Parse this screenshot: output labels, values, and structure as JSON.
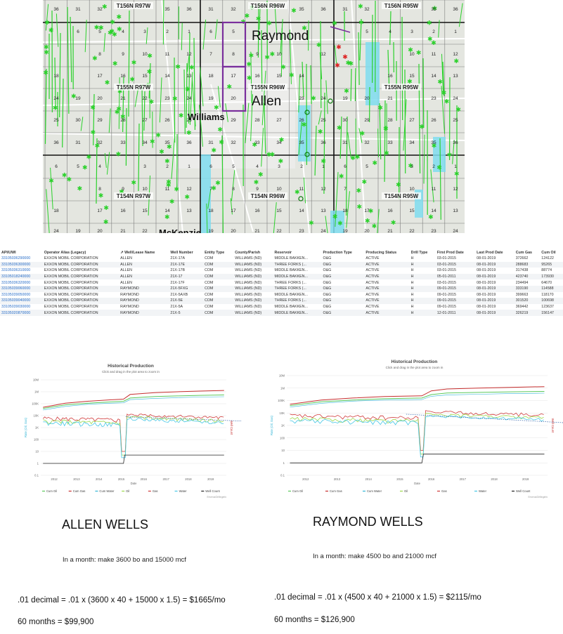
{
  "map": {
    "township_labels": [
      {
        "text": "T156N R97W",
        "x": 190,
        "y": 11
      },
      {
        "text": "T156N R96W",
        "x": 381,
        "y": 11
      },
      {
        "text": "T156N R95W",
        "x": 571,
        "y": 11
      },
      {
        "text": "T155N R97W",
        "x": 190,
        "y": 127
      },
      {
        "text": "T155N R96W",
        "x": 381,
        "y": 127
      },
      {
        "text": "T155N R95W",
        "x": 571,
        "y": 127
      },
      {
        "text": "T154N R97W",
        "x": 190,
        "y": 282
      },
      {
        "text": "T154N R96W",
        "x": 381,
        "y": 282
      },
      {
        "text": "T154N R95W",
        "x": 571,
        "y": 282
      }
    ],
    "place_labels": [
      {
        "text": "Raymond",
        "x": 358,
        "y": 57,
        "size": 19
      },
      {
        "text": "Allen",
        "x": 358,
        "y": 150,
        "size": 19
      },
      {
        "text": "Williams",
        "x": 267,
        "y": 171,
        "size": 13
      },
      {
        "text": "McKenzie",
        "x": 226,
        "y": 336,
        "size": 13
      }
    ],
    "section_numbers": [
      {
        "t": "36",
        "x": 80,
        "y": 15
      },
      {
        "t": "31",
        "x": 111,
        "y": 15
      },
      {
        "t": "32",
        "x": 142,
        "y": 15
      },
      {
        "t": "35",
        "x": 238,
        "y": 15
      },
      {
        "t": "36",
        "x": 269,
        "y": 15
      },
      {
        "t": "31",
        "x": 300,
        "y": 15
      },
      {
        "t": "32",
        "x": 332,
        "y": 15
      },
      {
        "t": "35",
        "x": 429,
        "y": 15
      },
      {
        "t": "36",
        "x": 460,
        "y": 15
      },
      {
        "t": "31",
        "x": 491,
        "y": 15
      },
      {
        "t": "32",
        "x": 522,
        "y": 15
      },
      {
        "t": "35",
        "x": 617,
        "y": 15
      },
      {
        "t": "36",
        "x": 648,
        "y": 15
      },
      {
        "t": "6",
        "x": 111,
        "y": 47
      },
      {
        "t": "5",
        "x": 142,
        "y": 47
      },
      {
        "t": "4",
        "x": 175,
        "y": 47
      },
      {
        "t": "3",
        "x": 206,
        "y": 47
      },
      {
        "t": "2",
        "x": 238,
        "y": 47
      },
      {
        "t": "1",
        "x": 269,
        "y": 47
      },
      {
        "t": "6",
        "x": 300,
        "y": 47
      },
      {
        "t": "5",
        "x": 332,
        "y": 47
      },
      {
        "t": "5",
        "x": 522,
        "y": 47
      },
      {
        "t": "4",
        "x": 555,
        "y": 47
      },
      {
        "t": "3",
        "x": 586,
        "y": 47
      },
      {
        "t": "2",
        "x": 617,
        "y": 47
      },
      {
        "t": "1",
        "x": 648,
        "y": 47
      },
      {
        "t": "8",
        "x": 142,
        "y": 79
      },
      {
        "t": "9",
        "x": 175,
        "y": 79
      },
      {
        "t": "10",
        "x": 206,
        "y": 79
      },
      {
        "t": "11",
        "x": 238,
        "y": 79
      },
      {
        "t": "12",
        "x": 269,
        "y": 79
      },
      {
        "t": "7",
        "x": 300,
        "y": 79
      },
      {
        "t": "8",
        "x": 332,
        "y": 79
      },
      {
        "t": "9",
        "x": 366,
        "y": 79
      },
      {
        "t": "10",
        "x": 397,
        "y": 79
      },
      {
        "t": "12",
        "x": 460,
        "y": 79
      },
      {
        "t": "10",
        "x": 586,
        "y": 79
      },
      {
        "t": "11",
        "x": 617,
        "y": 79
      },
      {
        "t": "12",
        "x": 648,
        "y": 79
      },
      {
        "t": "18",
        "x": 80,
        "y": 110
      },
      {
        "t": "17",
        "x": 142,
        "y": 110
      },
      {
        "t": "16",
        "x": 175,
        "y": 110
      },
      {
        "t": "15",
        "x": 206,
        "y": 110
      },
      {
        "t": "14",
        "x": 238,
        "y": 110
      },
      {
        "t": "13",
        "x": 269,
        "y": 110
      },
      {
        "t": "18",
        "x": 300,
        "y": 110
      },
      {
        "t": "17",
        "x": 332,
        "y": 110
      },
      {
        "t": "16",
        "x": 366,
        "y": 110
      },
      {
        "t": "15",
        "x": 397,
        "y": 110
      },
      {
        "t": "14",
        "x": 429,
        "y": 110
      },
      {
        "t": "16",
        "x": 555,
        "y": 110
      },
      {
        "t": "15",
        "x": 586,
        "y": 110
      },
      {
        "t": "14",
        "x": 617,
        "y": 110
      },
      {
        "t": "13",
        "x": 648,
        "y": 110
      },
      {
        "t": "24",
        "x": 80,
        "y": 142
      },
      {
        "t": "19",
        "x": 111,
        "y": 142
      },
      {
        "t": "20",
        "x": 142,
        "y": 142
      },
      {
        "t": "21",
        "x": 175,
        "y": 142
      },
      {
        "t": "22",
        "x": 206,
        "y": 142
      },
      {
        "t": "23",
        "x": 238,
        "y": 142
      },
      {
        "t": "24",
        "x": 269,
        "y": 142
      },
      {
        "t": "19",
        "x": 300,
        "y": 142
      },
      {
        "t": "20",
        "x": 332,
        "y": 142
      },
      {
        "t": "23",
        "x": 429,
        "y": 142
      },
      {
        "t": "24",
        "x": 460,
        "y": 142
      },
      {
        "t": "19",
        "x": 491,
        "y": 142
      },
      {
        "t": "20",
        "x": 522,
        "y": 142
      },
      {
        "t": "21",
        "x": 555,
        "y": 142
      },
      {
        "t": "23",
        "x": 617,
        "y": 142
      },
      {
        "t": "24",
        "x": 648,
        "y": 142
      },
      {
        "t": "25",
        "x": 80,
        "y": 173
      },
      {
        "t": "30",
        "x": 111,
        "y": 173
      },
      {
        "t": "29",
        "x": 142,
        "y": 173
      },
      {
        "t": "28",
        "x": 175,
        "y": 173
      },
      {
        "t": "27",
        "x": 206,
        "y": 173
      },
      {
        "t": "26",
        "x": 238,
        "y": 173
      },
      {
        "t": "25",
        "x": 269,
        "y": 173
      },
      {
        "t": "29",
        "x": 332,
        "y": 173
      },
      {
        "t": "28",
        "x": 366,
        "y": 173
      },
      {
        "t": "27",
        "x": 397,
        "y": 173
      },
      {
        "t": "26",
        "x": 429,
        "y": 173
      },
      {
        "t": "25",
        "x": 460,
        "y": 173
      },
      {
        "t": "30",
        "x": 491,
        "y": 173
      },
      {
        "t": "29",
        "x": 522,
        "y": 173
      },
      {
        "t": "28",
        "x": 555,
        "y": 173
      },
      {
        "t": "27",
        "x": 586,
        "y": 173
      },
      {
        "t": "26",
        "x": 617,
        "y": 173
      },
      {
        "t": "25",
        "x": 648,
        "y": 173
      },
      {
        "t": "36",
        "x": 80,
        "y": 205
      },
      {
        "t": "31",
        "x": 111,
        "y": 205
      },
      {
        "t": "32",
        "x": 142,
        "y": 205
      },
      {
        "t": "33",
        "x": 175,
        "y": 205
      },
      {
        "t": "34",
        "x": 206,
        "y": 205
      },
      {
        "t": "35",
        "x": 238,
        "y": 205
      },
      {
        "t": "36",
        "x": 269,
        "y": 205
      },
      {
        "t": "31",
        "x": 300,
        "y": 205
      },
      {
        "t": "32",
        "x": 332,
        "y": 205
      },
      {
        "t": "33",
        "x": 366,
        "y": 205
      },
      {
        "t": "34",
        "x": 397,
        "y": 205
      },
      {
        "t": "35",
        "x": 429,
        "y": 205
      },
      {
        "t": "36",
        "x": 460,
        "y": 205
      },
      {
        "t": "31",
        "x": 491,
        "y": 205
      },
      {
        "t": "32",
        "x": 522,
        "y": 205
      },
      {
        "t": "33",
        "x": 555,
        "y": 205
      },
      {
        "t": "34",
        "x": 586,
        "y": 205
      },
      {
        "t": "35",
        "x": 617,
        "y": 205
      },
      {
        "t": "36",
        "x": 648,
        "y": 205
      },
      {
        "t": "6",
        "x": 80,
        "y": 239
      },
      {
        "t": "5",
        "x": 111,
        "y": 239
      },
      {
        "t": "4",
        "x": 142,
        "y": 239
      },
      {
        "t": "3",
        "x": 206,
        "y": 239
      },
      {
        "t": "2",
        "x": 238,
        "y": 239
      },
      {
        "t": "1",
        "x": 269,
        "y": 239
      },
      {
        "t": "6",
        "x": 300,
        "y": 239
      },
      {
        "t": "5",
        "x": 332,
        "y": 239
      },
      {
        "t": "4",
        "x": 366,
        "y": 239
      },
      {
        "t": "3",
        "x": 397,
        "y": 239
      },
      {
        "t": "2",
        "x": 429,
        "y": 239
      },
      {
        "t": "1",
        "x": 460,
        "y": 239
      },
      {
        "t": "6",
        "x": 491,
        "y": 239
      },
      {
        "t": "5",
        "x": 522,
        "y": 239
      },
      {
        "t": "3",
        "x": 586,
        "y": 239
      },
      {
        "t": "2",
        "x": 617,
        "y": 239
      },
      {
        "t": "1",
        "x": 648,
        "y": 239
      },
      {
        "t": "8",
        "x": 142,
        "y": 271
      },
      {
        "t": "9",
        "x": 175,
        "y": 271
      },
      {
        "t": "10",
        "x": 206,
        "y": 271
      },
      {
        "t": "11",
        "x": 238,
        "y": 271
      },
      {
        "t": "12",
        "x": 269,
        "y": 271
      },
      {
        "t": "7",
        "x": 300,
        "y": 271
      },
      {
        "t": "8",
        "x": 332,
        "y": 271
      },
      {
        "t": "9",
        "x": 366,
        "y": 271
      },
      {
        "t": "10",
        "x": 397,
        "y": 271
      },
      {
        "t": "11",
        "x": 429,
        "y": 271
      },
      {
        "t": "12",
        "x": 460,
        "y": 271
      },
      {
        "t": "7",
        "x": 491,
        "y": 271
      },
      {
        "t": "10",
        "x": 586,
        "y": 271
      },
      {
        "t": "11",
        "x": 617,
        "y": 271
      },
      {
        "t": "12",
        "x": 648,
        "y": 271
      },
      {
        "t": "18",
        "x": 80,
        "y": 302
      },
      {
        "t": "17",
        "x": 142,
        "y": 302
      },
      {
        "t": "16",
        "x": 175,
        "y": 302
      },
      {
        "t": "15",
        "x": 206,
        "y": 302
      },
      {
        "t": "14",
        "x": 238,
        "y": 302
      },
      {
        "t": "13",
        "x": 269,
        "y": 302
      },
      {
        "t": "18",
        "x": 300,
        "y": 302
      },
      {
        "t": "17",
        "x": 332,
        "y": 302
      },
      {
        "t": "16",
        "x": 366,
        "y": 302
      },
      {
        "t": "15",
        "x": 397,
        "y": 302
      },
      {
        "t": "14",
        "x": 429,
        "y": 302
      },
      {
        "t": "13",
        "x": 460,
        "y": 302
      },
      {
        "t": "18",
        "x": 491,
        "y": 302
      },
      {
        "t": "17",
        "x": 522,
        "y": 302
      },
      {
        "t": "16",
        "x": 555,
        "y": 302
      },
      {
        "t": "15",
        "x": 586,
        "y": 302
      },
      {
        "t": "14",
        "x": 617,
        "y": 302
      },
      {
        "t": "13",
        "x": 648,
        "y": 302
      },
      {
        "t": "24",
        "x": 80,
        "y": 331
      },
      {
        "t": "19",
        "x": 111,
        "y": 331
      },
      {
        "t": "20",
        "x": 142,
        "y": 331
      },
      {
        "t": "21",
        "x": 175,
        "y": 331
      },
      {
        "t": "22",
        "x": 206,
        "y": 331
      },
      {
        "t": "19",
        "x": 300,
        "y": 331
      },
      {
        "t": "20",
        "x": 332,
        "y": 331
      },
      {
        "t": "21",
        "x": 366,
        "y": 331
      },
      {
        "t": "22",
        "x": 397,
        "y": 331
      },
      {
        "t": "23",
        "x": 429,
        "y": 331
      },
      {
        "t": "24",
        "x": 460,
        "y": 331
      },
      {
        "t": "19",
        "x": 491,
        "y": 331
      },
      {
        "t": "20",
        "x": 522,
        "y": 331
      },
      {
        "t": "21",
        "x": 555,
        "y": 331
      },
      {
        "t": "22",
        "x": 586,
        "y": 331
      },
      {
        "t": "23",
        "x": 617,
        "y": 331
      },
      {
        "t": "24",
        "x": 648,
        "y": 331
      }
    ]
  },
  "table": {
    "columns": [
      "API/UWI",
      "Operator Alias (Legacy)",
      "↗ Well/Lease Name",
      "Well Number",
      "Entity Type",
      "County/Parish",
      "Reservoir",
      "Production Type",
      "Producing Status",
      "Drill Type",
      "First Prod Date",
      "Last Prod Date",
      "Cum Gas",
      "Cum Oil"
    ],
    "rows": [
      [
        "33105036290000",
        "EXXON MOBIL CORPORATION",
        "ALLEN",
        "21X-17A",
        "COM",
        "WILLIAMS (ND)",
        "MIDDLE BAKKEN...",
        "O&G",
        "ACTIVE",
        "H",
        "03-01-2015",
        "08-01-2019",
        "372662",
        "124122"
      ],
      [
        "33105036300000",
        "EXXON MOBIL CORPORATION",
        "ALLEN",
        "21X-17E",
        "COM",
        "WILLIAMS (ND)",
        "THREE FORKS (...",
        "O&G",
        "ACTIVE",
        "H",
        "03-01-2015",
        "08-01-2019",
        "288683",
        "95265"
      ],
      [
        "33105036310000",
        "EXXON MOBIL CORPORATION",
        "ALLEN",
        "21X-17B",
        "COM",
        "WILLIAMS (ND)",
        "MIDDLE BAKKEN...",
        "O&G",
        "ACTIVE",
        "H",
        "03-01-2015",
        "08-01-2019",
        "317438",
        "88774"
      ],
      [
        "33105018240000",
        "EXXON MOBIL CORPORATION",
        "ALLEN",
        "21X-17",
        "COM",
        "WILLIAMS (ND)",
        "MIDDLE BAKKEN...",
        "O&G",
        "ACTIVE",
        "H",
        "05-01-2011",
        "08-01-2019",
        "423740",
        "173930"
      ],
      [
        "33105036320000",
        "EXXON MOBIL CORPORATION",
        "ALLEN",
        "21X-17F",
        "COM",
        "WILLIAMS (ND)",
        "THREE FORKS (...",
        "O&G",
        "ACTIVE",
        "H",
        "03-01-2015",
        "08-01-2019",
        "234494",
        "64670"
      ],
      [
        "33105039060000",
        "EXXON MOBIL CORPORATION",
        "RAYMOND",
        "21X-5FXG",
        "COM",
        "WILLIAMS (ND)",
        "THREE FORKS (...",
        "O&G",
        "ACTIVE",
        "H",
        "09-01-2015",
        "08-01-2019",
        "333190",
        "114588"
      ],
      [
        "33105039050000",
        "EXXON MOBIL CORPORATION",
        "RAYMOND",
        "21X-5AXB",
        "COM",
        "WILLIAMS (ND)",
        "MIDDLE BAKKEN...",
        "O&G",
        "ACTIVE",
        "H",
        "09-01-2015",
        "08-01-2019",
        "399663",
        "118170"
      ],
      [
        "33105039040000",
        "EXXON MOBIL CORPORATION",
        "RAYMOND",
        "21X-5E",
        "COM",
        "WILLIAMS (ND)",
        "THREE FORKS (...",
        "O&G",
        "ACTIVE",
        "H",
        "09-01-2015",
        "08-01-2019",
        "301520",
        "100698"
      ],
      [
        "33105039030000",
        "EXXON MOBIL CORPORATION",
        "RAYMOND",
        "21X-5A",
        "COM",
        "WILLIAMS (ND)",
        "MIDDLE BAKKEN...",
        "O&G",
        "ACTIVE",
        "H",
        "09-01-2015",
        "08-01-2019",
        "369442",
        "123637"
      ],
      [
        "33105020870000",
        "EXXON MOBIL CORPORATION",
        "RAYMOND",
        "21X-5",
        "COM",
        "WILLIAMS (ND)",
        "MIDDLE BAKKEN...",
        "O&G",
        "ACTIVE",
        "H",
        "12-01-2011",
        "08-01-2019",
        "326219",
        "156147"
      ]
    ]
  },
  "chart_data": [
    {
      "type": "line",
      "title": "Historical Production",
      "subtitle": "Click and drag in the plot area to zoom in",
      "xlabel": "Date",
      "ylabel_left": "Rate (Oil, Gas)",
      "ylabel_right": "Well Count",
      "y_scale": "log",
      "ylim": [
        0.1,
        10000000
      ],
      "yticks": [
        "0.1",
        "1",
        "10",
        "100",
        "1K",
        "10K",
        "100K",
        "1M",
        "10M"
      ],
      "x_ticks": [
        "2012",
        "2013",
        "2014",
        "2015",
        "2016",
        "2017",
        "2018",
        "2019"
      ],
      "legend": [
        "Cum Oil",
        "Cum Gas",
        "Cum Water",
        "Oil",
        "Gas",
        "Water",
        "Well Count"
      ],
      "legend_position": "bottom",
      "credit": "Enverus/Drillinginfo"
    },
    {
      "type": "line",
      "title": "Historical Production",
      "subtitle": "Click and drag in the plot area to zoom in",
      "xlabel": "Date",
      "ylabel_left": "Rate (Oil, Gas)",
      "ylabel_right": "Well Count",
      "y_scale": "log",
      "ylim": [
        0.1,
        10000000
      ],
      "yticks": [
        "0.1",
        "1",
        "10",
        "100",
        "1K",
        "10K",
        "100K",
        "1M",
        "10M"
      ],
      "x_ticks": [
        "2012",
        "2013",
        "2014",
        "2015",
        "2016",
        "2017",
        "2018",
        "2019"
      ],
      "legend": [
        "Cum Oil",
        "Cum Gas",
        "Cum Water",
        "Oil",
        "Gas",
        "Water",
        "Well Count"
      ],
      "legend_position": "bottom",
      "credit": "Enverus/Drillinginfo"
    }
  ],
  "colors": {
    "cum_oil": "#5cc95c",
    "cum_gas": "#c62e2e",
    "cum_water": "#33b5d6",
    "oil": "#9bd84a",
    "gas": "#d03a3a",
    "water": "#47c7e6",
    "well_count": "#222222",
    "map_wells": "#2bd12b",
    "map_highlight": "#7a2f9c"
  },
  "allen": {
    "heading": "ALLEN WELLS",
    "month_note": "In a month:  make 3600 bo and 15000 mcf",
    "calc": ".01 decimal = .01 x (3600 x 40 + 15000 x 1.5) = $1665/mo",
    "total": "60 months = $99,900"
  },
  "raymond": {
    "heading": "RAYMOND WELLS",
    "month_note": "In a month:  make 4500 bo and 21000 mcf",
    "calc": ".01 decimal = .01 x (4500 x 40 + 21000 x 1.5) = $2115/mo",
    "total": "60 months = $126,900"
  }
}
